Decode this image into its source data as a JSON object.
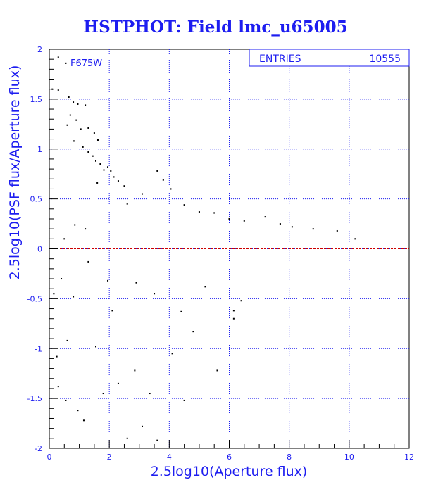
{
  "chart_data": {
    "type": "scatter",
    "title": "HSTPHOT: Field lmc_u65005",
    "xlabel": "2.5log10(Aperture flux)",
    "ylabel": "2.5log10(PSF flux/Aperture flux)",
    "xlim": [
      0,
      12
    ],
    "ylim": [
      -2,
      2
    ],
    "x_ticks": [
      "0",
      "2",
      "4",
      "6",
      "8",
      "10",
      "12"
    ],
    "y_ticks": [
      "-2",
      "-1.5",
      "-1",
      "-0.5",
      "0",
      "0.5",
      "1",
      "1.5",
      "2"
    ],
    "grid": true,
    "reference_line": {
      "y": 0,
      "color": "#cc0000",
      "style": "dashed"
    },
    "annotation": "F675W",
    "stats_box": {
      "label": "ENTRIES",
      "value": "10555"
    },
    "series": [
      {
        "points": [
          [
            0.3,
            1.92
          ],
          [
            0.55,
            1.86
          ],
          [
            0.1,
            1.6
          ],
          [
            0.3,
            1.59
          ],
          [
            0.8,
            1.47
          ],
          [
            0.95,
            1.45
          ],
          [
            1.2,
            1.44
          ],
          [
            0.65,
            1.52
          ],
          [
            0.7,
            1.34
          ],
          [
            0.9,
            1.29
          ],
          [
            0.6,
            1.24
          ],
          [
            1.05,
            1.2
          ],
          [
            1.3,
            1.21
          ],
          [
            1.5,
            1.16
          ],
          [
            1.62,
            1.09
          ],
          [
            0.82,
            1.08
          ],
          [
            1.12,
            1.02
          ],
          [
            1.3,
            0.97
          ],
          [
            1.45,
            0.93
          ],
          [
            1.55,
            0.88
          ],
          [
            1.7,
            0.85
          ],
          [
            1.95,
            0.82
          ],
          [
            2.05,
            0.78
          ],
          [
            1.82,
            0.79
          ],
          [
            2.15,
            0.72
          ],
          [
            2.3,
            0.68
          ],
          [
            1.6,
            0.66
          ],
          [
            2.5,
            0.63
          ],
          [
            3.6,
            0.78
          ],
          [
            3.8,
            0.69
          ],
          [
            4.05,
            0.6
          ],
          [
            4.5,
            0.44
          ],
          [
            5.0,
            0.37
          ],
          [
            5.5,
            0.36
          ],
          [
            6.0,
            0.3
          ],
          [
            6.5,
            0.28
          ],
          [
            3.1,
            0.55
          ],
          [
            2.6,
            0.45
          ],
          [
            0.85,
            0.24
          ],
          [
            1.2,
            0.2
          ],
          [
            0.5,
            0.1
          ],
          [
            0.4,
            -0.3
          ],
          [
            0.8,
            -0.48
          ],
          [
            0.6,
            -0.92
          ],
          [
            0.25,
            -1.08
          ],
          [
            0.95,
            -1.62
          ],
          [
            1.15,
            -1.72
          ],
          [
            1.8,
            -1.45
          ],
          [
            2.3,
            -1.35
          ],
          [
            2.6,
            -1.9
          ],
          [
            3.1,
            -1.78
          ],
          [
            3.6,
            -1.92
          ],
          [
            4.5,
            -1.52
          ],
          [
            5.6,
            -1.22
          ],
          [
            6.15,
            -0.7
          ],
          [
            6.4,
            -0.52
          ],
          [
            6.15,
            -0.62
          ],
          [
            1.55,
            -0.98
          ],
          [
            2.1,
            -0.62
          ],
          [
            7.2,
            0.32
          ],
          [
            7.7,
            0.25
          ],
          [
            8.1,
            0.22
          ],
          [
            8.8,
            0.2
          ],
          [
            9.6,
            0.18
          ],
          [
            10.2,
            0.1
          ],
          [
            0.3,
            -1.38
          ],
          [
            1.3,
            -0.13
          ],
          [
            1.95,
            -0.32
          ],
          [
            0.15,
            -0.45
          ],
          [
            0.55,
            -1.52
          ],
          [
            2.85,
            -1.22
          ],
          [
            3.35,
            -1.45
          ],
          [
            4.1,
            -1.05
          ],
          [
            4.8,
            -0.83
          ],
          [
            3.5,
            -0.45
          ],
          [
            2.9,
            -0.34
          ],
          [
            4.4,
            -0.63
          ],
          [
            5.2,
            -0.38
          ]
        ]
      }
    ]
  }
}
